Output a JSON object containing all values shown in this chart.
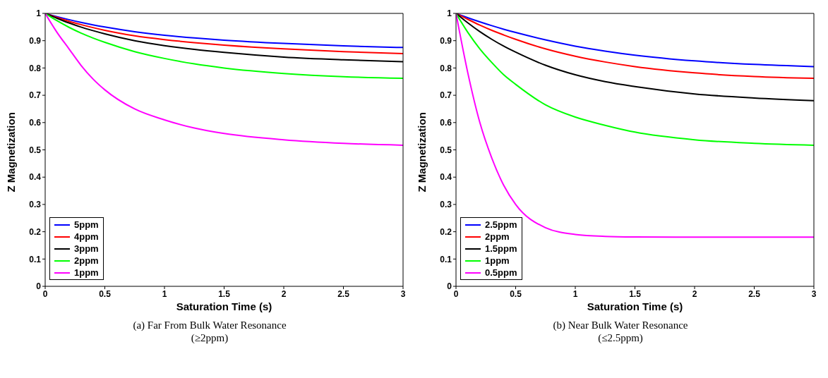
{
  "chart_data": [
    {
      "type": "line",
      "annotations": [
        "(a) Far From Bulk Water Resonance (≥2ppm)"
      ],
      "xlabel": "Saturation Time (s)",
      "ylabel": "Z Magnetization",
      "x": [
        0,
        0.1,
        0.2,
        0.3,
        0.4,
        0.5,
        0.75,
        1,
        1.25,
        1.5,
        2,
        2.5,
        3
      ],
      "xlim": [
        0,
        3
      ],
      "xticks": [
        0,
        0.5,
        1,
        1.5,
        2,
        2.5,
        3
      ],
      "ylim": [
        0,
        1
      ],
      "yticks": [
        0,
        0.1,
        0.2,
        0.3,
        0.4,
        0.5,
        0.6,
        0.7,
        0.8,
        0.9,
        1
      ],
      "grid": false,
      "legend": "bottom left",
      "marker": "none",
      "line_style": "solid",
      "series": [
        {
          "name": "5ppm",
          "color": "#0000ff",
          "values": [
            1,
            0.988,
            0.977,
            0.967,
            0.958,
            0.95,
            0.933,
            0.92,
            0.91,
            0.902,
            0.89,
            0.881,
            0.875
          ]
        },
        {
          "name": "4ppm",
          "color": "#ff0000",
          "values": [
            1,
            0.985,
            0.971,
            0.959,
            0.948,
            0.938,
            0.918,
            0.904,
            0.893,
            0.884,
            0.87,
            0.86,
            0.853
          ]
        },
        {
          "name": "3ppm",
          "color": "#000000",
          "values": [
            1,
            0.982,
            0.965,
            0.95,
            0.937,
            0.925,
            0.9,
            0.882,
            0.868,
            0.857,
            0.84,
            0.83,
            0.823
          ]
        },
        {
          "name": "2ppm",
          "color": "#00ff00",
          "values": [
            1,
            0.973,
            0.949,
            0.928,
            0.91,
            0.894,
            0.86,
            0.835,
            0.815,
            0.8,
            0.78,
            0.768,
            0.762
          ]
        },
        {
          "name": "1ppm",
          "color": "#ff00ff",
          "values": [
            1,
            0.93,
            0.87,
            0.81,
            0.76,
            0.72,
            0.65,
            0.61,
            0.58,
            0.56,
            0.537,
            0.524,
            0.517
          ]
        }
      ]
    },
    {
      "type": "line",
      "annotations": [
        "(b) Near Bulk Water Resonance (≤2.5ppm)"
      ],
      "xlabel": "Saturation Time (s)",
      "ylabel": "Z Magnetization",
      "x": [
        0,
        0.1,
        0.2,
        0.3,
        0.4,
        0.5,
        0.75,
        1,
        1.25,
        1.5,
        2,
        2.5,
        3
      ],
      "xlim": [
        0,
        3
      ],
      "xticks": [
        0,
        0.5,
        1,
        1.5,
        2,
        2.5,
        3
      ],
      "ylim": [
        0,
        1
      ],
      "yticks": [
        0,
        0.1,
        0.2,
        0.3,
        0.4,
        0.5,
        0.6,
        0.7,
        0.8,
        0.9,
        1
      ],
      "grid": false,
      "legend": "bottom left",
      "marker": "none",
      "line_style": "solid",
      "series": [
        {
          "name": "2.5ppm",
          "color": "#0000ff",
          "values": [
            1,
            0.984,
            0.969,
            0.955,
            0.942,
            0.93,
            0.903,
            0.88,
            0.862,
            0.847,
            0.826,
            0.813,
            0.805
          ]
        },
        {
          "name": "2ppm",
          "color": "#ff0000",
          "values": [
            1,
            0.978,
            0.957,
            0.938,
            0.921,
            0.905,
            0.87,
            0.843,
            0.822,
            0.805,
            0.782,
            0.769,
            0.762
          ]
        },
        {
          "name": "1.5ppm",
          "color": "#000000",
          "values": [
            1,
            0.965,
            0.933,
            0.905,
            0.88,
            0.858,
            0.81,
            0.775,
            0.75,
            0.732,
            0.705,
            0.69,
            0.68
          ]
        },
        {
          "name": "1ppm",
          "color": "#00ff00",
          "values": [
            1,
            0.93,
            0.87,
            0.82,
            0.775,
            0.74,
            0.665,
            0.62,
            0.59,
            0.565,
            0.537,
            0.524,
            0.517
          ]
        },
        {
          "name": "0.5ppm",
          "color": "#ff00ff",
          "values": [
            1,
            0.78,
            0.6,
            0.47,
            0.37,
            0.3,
            0.215,
            0.19,
            0.183,
            0.181,
            0.18,
            0.18,
            0.18
          ]
        }
      ]
    }
  ]
}
